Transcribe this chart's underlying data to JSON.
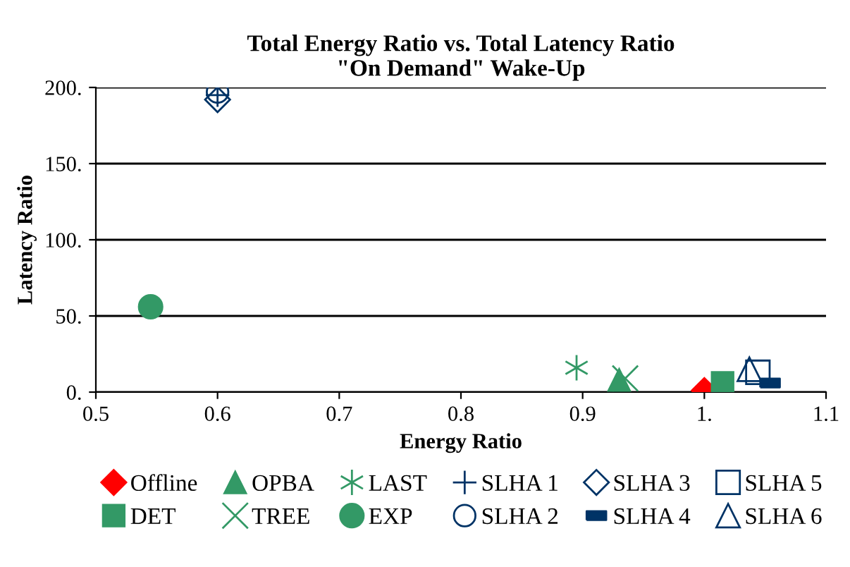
{
  "chart_data": {
    "type": "scatter",
    "title": "Total Energy Ratio vs. Total Latency Ratio\n\"On Demand\" Wake-Up",
    "xlabel": "Energy Ratio",
    "ylabel": "Latency Ratio",
    "xlim": [
      0.5,
      1.1
    ],
    "xticks": [
      0.5,
      0.6,
      0.7,
      0.8,
      0.9,
      {
        "value": 1.0,
        "label": "1."
      },
      1.1
    ],
    "ylim": [
      0,
      200
    ],
    "yticks": [
      {
        "value": 0,
        "label": "0."
      },
      {
        "value": 50,
        "label": "50."
      },
      {
        "value": 100,
        "label": "100."
      },
      {
        "value": 150,
        "label": "150."
      },
      {
        "value": 200,
        "label": "200."
      }
    ],
    "grid": "y",
    "legend": "bottom",
    "series": [
      {
        "name": "Offline",
        "color": "#ff0000",
        "marker": "diamond",
        "x": [
          1.0
        ],
        "values": [
          1
        ]
      },
      {
        "name": "DET",
        "color": "#339966",
        "marker": "square",
        "x": [
          1.015
        ],
        "values": [
          6
        ]
      },
      {
        "name": "OPBA",
        "color": "#339966",
        "marker": "triangle",
        "x": [
          0.93
        ],
        "values": [
          8
        ]
      },
      {
        "name": "TREE",
        "color": "#339966",
        "marker": "cross",
        "x": [
          0.935
        ],
        "values": [
          9
        ]
      },
      {
        "name": "LAST",
        "color": "#339966",
        "marker": "cross",
        "x": [
          0.895
        ],
        "values": [
          16
        ]
      },
      {
        "name": "EXP",
        "color": "#339966",
        "marker": "circle",
        "x": [
          0.545
        ],
        "values": [
          56
        ]
      },
      {
        "name": "SLHA 1",
        "color": "#003366",
        "marker": "cross",
        "x": [
          0.6
        ],
        "values": [
          195
        ]
      },
      {
        "name": "SLHA 2",
        "color": "#003366",
        "marker": "circle",
        "x": [
          0.6
        ],
        "values": [
          197
        ]
      },
      {
        "name": "SLHA 3",
        "color": "#003366",
        "marker": "diamond",
        "x": [
          0.6
        ],
        "values": [
          192
        ]
      },
      {
        "name": "SLHA 4",
        "color": "#003366",
        "marker": "square",
        "x": [
          1.054
        ],
        "values": [
          6
        ]
      },
      {
        "name": "SLHA 5",
        "color": "#003366",
        "marker": "square",
        "x": [
          1.044
        ],
        "values": [
          13
        ]
      },
      {
        "name": "SLHA 6",
        "color": "#003366",
        "marker": "triangle",
        "x": [
          1.037
        ],
        "values": [
          15
        ]
      }
    ]
  }
}
